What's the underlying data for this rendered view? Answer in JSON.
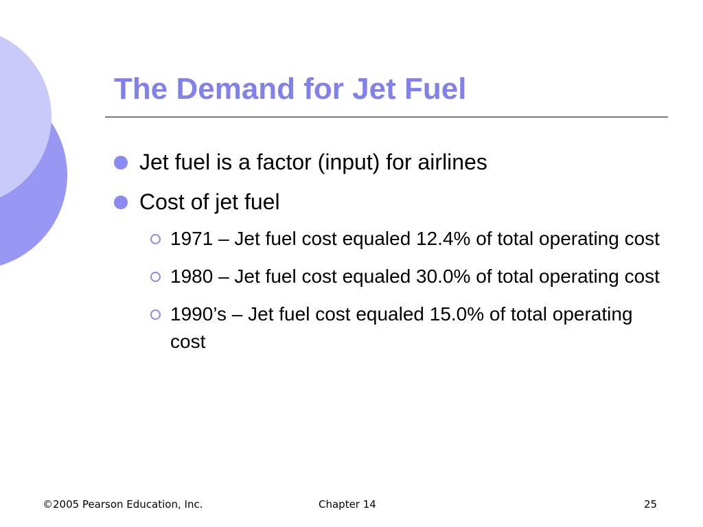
{
  "slide": {
    "title": "The Demand for Jet Fuel",
    "bullets": [
      {
        "text": "Jet fuel is a factor (input) for airlines",
        "level": 1
      },
      {
        "text": "Cost of jet fuel",
        "level": 1,
        "children": [
          {
            "text": "1971 – Jet fuel cost equaled 12.4% of total operating cost"
          },
          {
            "text": "1980 – Jet fuel cost equaled 30.0% of total operating cost"
          },
          {
            "text": "1990’s – Jet fuel cost equaled 15.0% of total operating cost"
          }
        ]
      }
    ]
  },
  "footer": {
    "copyright": "©2005 Pearson Education, Inc.",
    "chapter": "Chapter 14",
    "page_number": "25"
  },
  "colors": {
    "title": "#8080f0",
    "bullet": "#8a8af0",
    "circle_light": "#cacafa",
    "circle_dark": "#9898f4"
  }
}
